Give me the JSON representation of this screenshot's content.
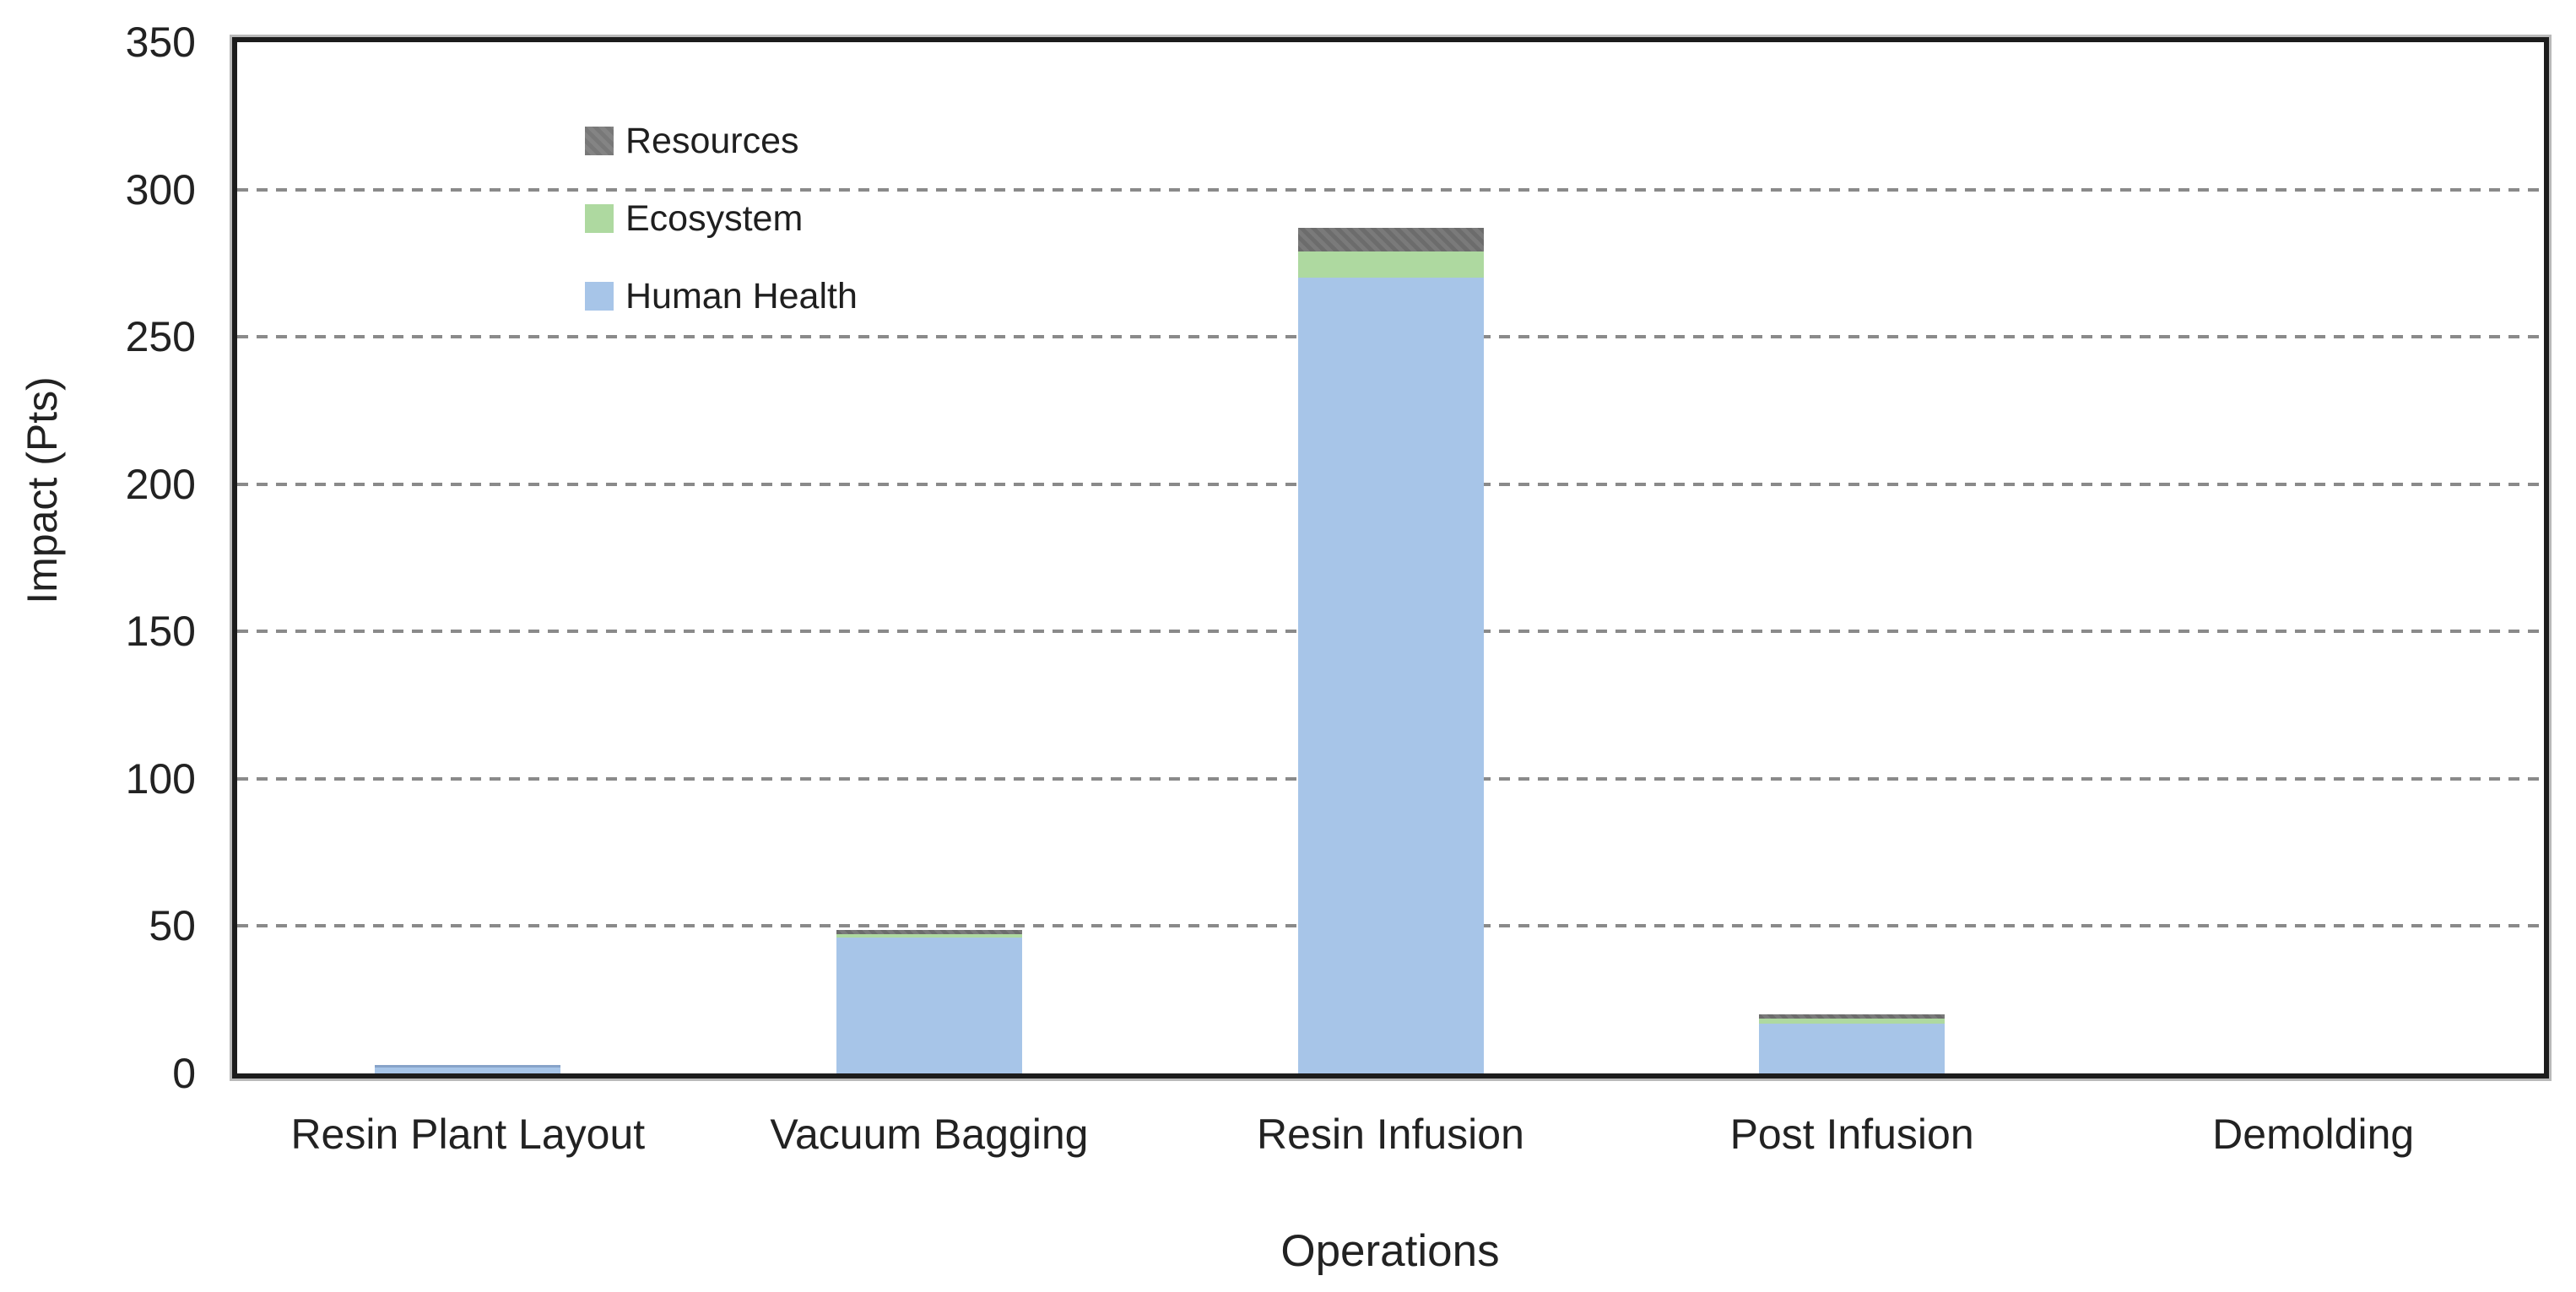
{
  "chart_data": {
    "type": "bar",
    "stacked": true,
    "categories": [
      "Resin Plant Layout",
      "Vacuum Bagging",
      "Resin Infusion",
      "Post Infusion",
      "Demolding"
    ],
    "series": [
      {
        "name": "Human Health",
        "color": "#A7C5E8",
        "values": [
          3,
          46,
          270,
          17,
          0
        ]
      },
      {
        "name": "Ecosystem",
        "color": "#AED9A0",
        "values": [
          0,
          1.3,
          9,
          1.5,
          0
        ]
      },
      {
        "name": "Resources",
        "color": "#717171",
        "values": [
          0,
          1.3,
          8,
          1.5,
          0
        ]
      }
    ],
    "totals": [
      3,
      48.6,
      287,
      20,
      0
    ],
    "xlabel": "Operations",
    "ylabel": "Impact (Pts)",
    "ylim": [
      0,
      350
    ],
    "yticks": [
      0,
      50,
      100,
      150,
      200,
      250,
      300,
      350
    ],
    "grid": "dashed horizontal gridlines at every 50, full box frame",
    "legend_position": "top-left inside plot",
    "legend_order": [
      "Resources",
      "Ecosystem",
      "Human Health"
    ],
    "colors": {
      "human_health": "#A7C5E8",
      "ecosystem": "#AED9A0",
      "resources": "#717171",
      "gridline": "#8A8A8A",
      "frame": "#1C1C1C",
      "text": "#222222"
    }
  }
}
